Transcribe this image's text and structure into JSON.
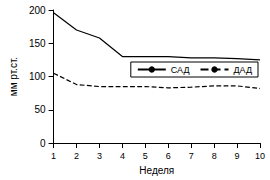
{
  "chart_data": {
    "type": "line",
    "x_label": "Неделя",
    "y_label": "мм рт.ст.",
    "categories": [
      "1",
      "2",
      "3",
      "4",
      "5",
      "6",
      "7",
      "8",
      "9",
      "10"
    ],
    "series": [
      {
        "name": "САД",
        "color": "#000000",
        "line_style": "solid",
        "values": [
          196,
          170,
          158,
          130,
          130,
          130,
          128,
          128,
          127,
          125
        ]
      },
      {
        "name": "ДАД",
        "color": "#000000",
        "line_style": "dashed",
        "values": [
          105,
          88,
          85,
          85,
          85,
          83,
          84,
          86,
          86,
          82
        ]
      }
    ],
    "ylim": [
      0,
      200
    ],
    "yticks": [
      0,
      50,
      100,
      150,
      200
    ],
    "grid": false,
    "legend": "right"
  }
}
